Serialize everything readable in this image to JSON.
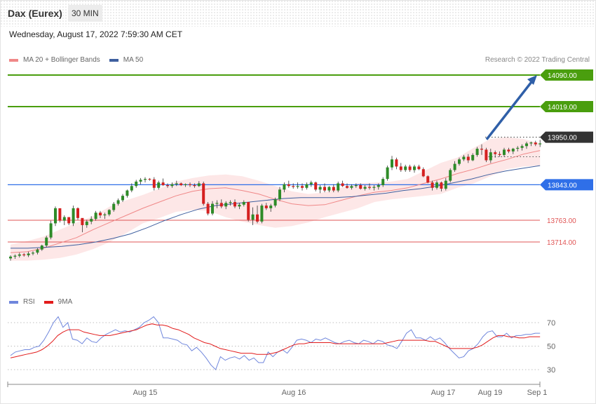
{
  "header": {
    "instrument": "Dax (Eurex)",
    "timeframe": "30 MIN",
    "datetime": "Wednesday, August 17, 2022 7:59:30 AM CET"
  },
  "legend": {
    "ma20_label": "MA 20 + Bollinger Bands",
    "ma50_label": "MA 50",
    "credit": "Research © 2022 Trading Central"
  },
  "rsi_legend": {
    "rsi_label": "RSI",
    "ma_label": "9MA"
  },
  "colors": {
    "candle_up": "#2e8b28",
    "candle_down": "#d52020",
    "bollinger_fill": "#fde3e3",
    "ma20": "#f08888",
    "ma50": "#3e5f9f",
    "resistance": "#4a9e0e",
    "pivot": "#2f6fe8",
    "support": "#e05555",
    "last_price": "#333333",
    "rsi": "#6f86dc",
    "rsi_ma": "#e21b1b"
  },
  "chart_data": [
    {
      "type": "candlestick",
      "title": "Dax (Eurex) 30 MIN",
      "price_range": [
        13658,
        14112
      ],
      "x_ticks": [
        "Aug 15",
        "Aug 16",
        "Aug 17",
        "Aug 19",
        "Sep 1"
      ],
      "candles_ohlc": [
        [
          13677,
          13684,
          13672,
          13681
        ],
        [
          13681,
          13686,
          13676,
          13683
        ],
        [
          13683,
          13690,
          13679,
          13686
        ],
        [
          13686,
          13689,
          13681,
          13684
        ],
        [
          13684,
          13692,
          13680,
          13688
        ],
        [
          13688,
          13693,
          13684,
          13690
        ],
        [
          13690,
          13700,
          13686,
          13697
        ],
        [
          13697,
          13708,
          13694,
          13706
        ],
        [
          13706,
          13728,
          13702,
          13724
        ],
        [
          13724,
          13762,
          13720,
          13756
        ],
        [
          13756,
          13794,
          13750,
          13790
        ],
        [
          13790,
          13788,
          13758,
          13762
        ],
        [
          13762,
          13774,
          13752,
          13770
        ],
        [
          13770,
          13768,
          13752,
          13756
        ],
        [
          13756,
          13796,
          13750,
          13790
        ],
        [
          13790,
          13792,
          13764,
          13768
        ],
        [
          13768,
          13760,
          13736,
          13752
        ],
        [
          13752,
          13764,
          13746,
          13760
        ],
        [
          13760,
          13772,
          13754,
          13766
        ],
        [
          13766,
          13784,
          13762,
          13780
        ],
        [
          13780,
          13784,
          13768,
          13774
        ],
        [
          13774,
          13780,
          13766,
          13776
        ],
        [
          13776,
          13788,
          13772,
          13786
        ],
        [
          13786,
          13804,
          13782,
          13800
        ],
        [
          13800,
          13812,
          13796,
          13808
        ],
        [
          13808,
          13822,
          13804,
          13818
        ],
        [
          13818,
          13832,
          13814,
          13830
        ],
        [
          13830,
          13846,
          13826,
          13840
        ],
        [
          13840,
          13854,
          13836,
          13850
        ],
        [
          13850,
          13858,
          13844,
          13854
        ],
        [
          13854,
          13860,
          13848,
          13856
        ],
        [
          13856,
          13858,
          13852,
          13855
        ],
        [
          13855,
          13860,
          13830,
          13836
        ],
        [
          13836,
          13852,
          13832,
          13848
        ],
        [
          13848,
          13857,
          13840,
          13842
        ],
        [
          13842,
          13846,
          13836,
          13840
        ],
        [
          13840,
          13848,
          13836,
          13844
        ],
        [
          13844,
          13852,
          13840,
          13846
        ],
        [
          13846,
          13848,
          13840,
          13842
        ],
        [
          13842,
          13846,
          13838,
          13844
        ],
        [
          13844,
          13848,
          13838,
          13842
        ],
        [
          13842,
          13846,
          13836,
          13840
        ],
        [
          13840,
          13851,
          13838,
          13846
        ],
        [
          13846,
          13850,
          13796,
          13800
        ],
        [
          13800,
          13804,
          13774,
          13778
        ],
        [
          13778,
          13806,
          13774,
          13800
        ],
        [
          13800,
          13808,
          13790,
          13802
        ],
        [
          13802,
          13810,
          13790,
          13794
        ],
        [
          13794,
          13806,
          13788,
          13802
        ],
        [
          13802,
          13808,
          13796,
          13804
        ],
        [
          13804,
          13810,
          13790,
          13794
        ],
        [
          13794,
          13802,
          13788,
          13798
        ],
        [
          13798,
          13808,
          13794,
          13804
        ],
        [
          13804,
          13802,
          13760,
          13764
        ],
        [
          13764,
          13792,
          13752,
          13776
        ],
        [
          13776,
          13796,
          13756,
          13760
        ],
        [
          13760,
          13800,
          13756,
          13796
        ],
        [
          13796,
          13802,
          13786,
          13790
        ],
        [
          13790,
          13800,
          13782,
          13796
        ],
        [
          13796,
          13814,
          13792,
          13810
        ],
        [
          13810,
          13838,
          13806,
          13832
        ],
        [
          13832,
          13848,
          13826,
          13844
        ],
        [
          13844,
          13852,
          13836,
          13840
        ],
        [
          13840,
          13846,
          13834,
          13838
        ],
        [
          13838,
          13848,
          13834,
          13840
        ],
        [
          13840,
          13846,
          13830,
          13836
        ],
        [
          13836,
          13848,
          13832,
          13844
        ],
        [
          13844,
          13852,
          13838,
          13848
        ],
        [
          13848,
          13850,
          13828,
          13832
        ],
        [
          13832,
          13842,
          13824,
          13838
        ],
        [
          13838,
          13846,
          13826,
          13830
        ],
        [
          13830,
          13840,
          13826,
          13838
        ],
        [
          13838,
          13844,
          13826,
          13830
        ],
        [
          13830,
          13850,
          13826,
          13846
        ],
        [
          13846,
          13852,
          13838,
          13840
        ],
        [
          13840,
          13846,
          13834,
          13836
        ],
        [
          13836,
          13844,
          13832,
          13840
        ],
        [
          13840,
          13846,
          13836,
          13842
        ],
        [
          13842,
          13846,
          13832,
          13834
        ],
        [
          13834,
          13842,
          13830,
          13838
        ],
        [
          13838,
          13846,
          13832,
          13836
        ],
        [
          13836,
          13842,
          13830,
          13838
        ],
        [
          13838,
          13846,
          13832,
          13842
        ],
        [
          13842,
          13860,
          13838,
          13856
        ],
        [
          13856,
          13886,
          13852,
          13882
        ],
        [
          13882,
          13908,
          13876,
          13900
        ],
        [
          13900,
          13904,
          13878,
          13884
        ],
        [
          13884,
          13892,
          13872,
          13876
        ],
        [
          13876,
          13888,
          13872,
          13884
        ],
        [
          13884,
          13888,
          13872,
          13876
        ],
        [
          13876,
          13888,
          13870,
          13884
        ],
        [
          13884,
          13888,
          13876,
          13878
        ],
        [
          13878,
          13882,
          13860,
          13862
        ],
        [
          13862,
          13864,
          13846,
          13848
        ],
        [
          13848,
          13852,
          13830,
          13836
        ],
        [
          13836,
          13852,
          13832,
          13848
        ],
        [
          13848,
          13850,
          13828,
          13834
        ],
        [
          13834,
          13858,
          13830,
          13852
        ],
        [
          13852,
          13880,
          13848,
          13876
        ],
        [
          13876,
          13896,
          13872,
          13890
        ],
        [
          13890,
          13904,
          13886,
          13900
        ],
        [
          13900,
          13910,
          13896,
          13906
        ],
        [
          13906,
          13912,
          13892,
          13898
        ],
        [
          13898,
          13914,
          13896,
          13910
        ],
        [
          13910,
          13928,
          13906,
          13924
        ],
        [
          13924,
          13934,
          13910,
          13922
        ],
        [
          13922,
          13926,
          13894,
          13898
        ],
        [
          13898,
          13924,
          13892,
          13916
        ],
        [
          13916,
          13920,
          13904,
          13912
        ],
        [
          13912,
          13918,
          13906,
          13910
        ],
        [
          13910,
          13926,
          13906,
          13922
        ],
        [
          13922,
          13926,
          13914,
          13918
        ],
        [
          13918,
          13926,
          13912,
          13924
        ],
        [
          13924,
          13930,
          13918,
          13926
        ],
        [
          13926,
          13934,
          13920,
          13930
        ],
        [
          13930,
          13940,
          13924,
          13936
        ],
        [
          13936,
          13940,
          13930,
          13938
        ],
        [
          13938,
          13942,
          13930,
          13934
        ],
        [
          13934,
          13944,
          13928,
          13936
        ]
      ],
      "bollinger_upper": [
        13708,
        13716,
        13726,
        13742,
        13758,
        13772,
        13794,
        13808,
        13820,
        13834,
        13850,
        13858,
        13864,
        13866,
        13862,
        13852,
        13840,
        13828,
        13822,
        13826,
        13836,
        13846,
        13848,
        13850,
        13856,
        13874,
        13892,
        13904,
        13926,
        13946,
        13950,
        13946,
        13936
      ],
      "bollinger_lower": [
        13672,
        13672,
        13674,
        13678,
        13686,
        13698,
        13714,
        13734,
        13756,
        13768,
        13782,
        13786,
        13784,
        13770,
        13760,
        13752,
        13746,
        13750,
        13758,
        13770,
        13780,
        13790,
        13804,
        13810,
        13814,
        13818,
        13822,
        13836,
        13846,
        13862,
        13878,
        13884,
        13886
      ],
      "ma20": [
        13690,
        13692,
        13700,
        13712,
        13724,
        13742,
        13758,
        13774,
        13790,
        13804,
        13818,
        13828,
        13834,
        13836,
        13830,
        13822,
        13810,
        13800,
        13796,
        13798,
        13808,
        13818,
        13826,
        13830,
        13836,
        13846,
        13856,
        13868,
        13878,
        13890,
        13900,
        13912,
        13920
      ],
      "ma50": [
        13700,
        13700,
        13702,
        13704,
        13708,
        13714,
        13722,
        13732,
        13746,
        13762,
        13776,
        13788,
        13796,
        13800,
        13804,
        13808,
        13812,
        13814,
        13814,
        13814,
        13816,
        13820,
        13824,
        13830,
        13834,
        13840,
        13848,
        13856,
        13866,
        13874,
        13880,
        13886
      ],
      "horizontal_levels": [
        {
          "value": 14090.0,
          "label": "14090.00",
          "kind": "resistance"
        },
        {
          "value": 14019.0,
          "label": "14019.00",
          "kind": "resistance"
        },
        {
          "value": 13950.0,
          "label": "13950.00",
          "kind": "last"
        },
        {
          "value": 13843.0,
          "label": "13843.00",
          "kind": "pivot"
        },
        {
          "value": 13763.0,
          "label": "13763.00",
          "kind": "support"
        },
        {
          "value": 13714.0,
          "label": "13714.00",
          "kind": "support"
        }
      ],
      "ma50_last": 13906,
      "arrow": {
        "from": 13945,
        "to": 14090
      }
    },
    {
      "type": "line",
      "y_range": [
        18,
        83
      ],
      "y_ticks": [
        70,
        50,
        30
      ],
      "rsi": [
        42,
        45,
        46,
        47,
        47,
        49,
        50,
        55,
        62,
        70,
        75,
        66,
        70,
        56,
        55,
        52,
        57,
        54,
        53,
        57,
        60,
        62,
        64,
        62,
        63,
        62,
        64,
        66,
        70,
        72,
        75,
        70,
        57,
        57,
        56,
        55,
        52,
        51,
        46,
        49,
        45,
        40,
        34,
        30,
        41,
        38,
        40,
        41,
        39,
        42,
        38,
        40,
        36,
        36,
        45,
        41,
        45,
        47,
        44,
        49,
        55,
        56,
        55,
        53,
        56,
        55,
        57,
        55,
        53,
        52,
        54,
        55,
        53,
        52,
        55,
        54,
        52,
        55,
        54,
        51,
        50,
        48,
        54,
        61,
        64,
        57,
        57,
        55,
        58,
        55,
        57,
        53,
        48,
        44,
        40,
        41,
        46,
        48,
        52,
        58,
        62,
        63,
        58,
        58,
        61,
        57,
        59,
        59,
        60,
        60,
        61,
        61
      ],
      "rsi_ma": [
        40,
        41,
        42,
        43,
        44,
        45,
        47,
        50,
        54,
        59,
        62,
        64,
        64,
        64,
        62,
        61,
        60,
        59,
        59,
        59,
        60,
        61,
        62,
        63,
        64,
        66,
        68,
        69,
        68,
        68,
        67,
        65,
        64,
        62,
        60,
        57,
        55,
        53,
        52,
        50,
        48,
        47,
        46,
        45,
        44,
        44,
        44,
        43,
        43,
        43,
        44,
        45,
        47,
        49,
        51,
        52,
        52,
        53,
        53,
        53,
        53,
        53,
        52,
        52,
        52,
        52,
        52,
        52,
        52,
        52,
        52,
        52,
        53,
        54,
        55,
        55,
        55,
        55,
        55,
        55,
        54,
        54,
        52,
        50,
        48,
        48,
        48,
        48,
        48,
        49,
        51,
        54,
        57,
        59,
        59,
        58,
        58,
        57,
        57,
        58,
        58,
        58
      ]
    }
  ]
}
